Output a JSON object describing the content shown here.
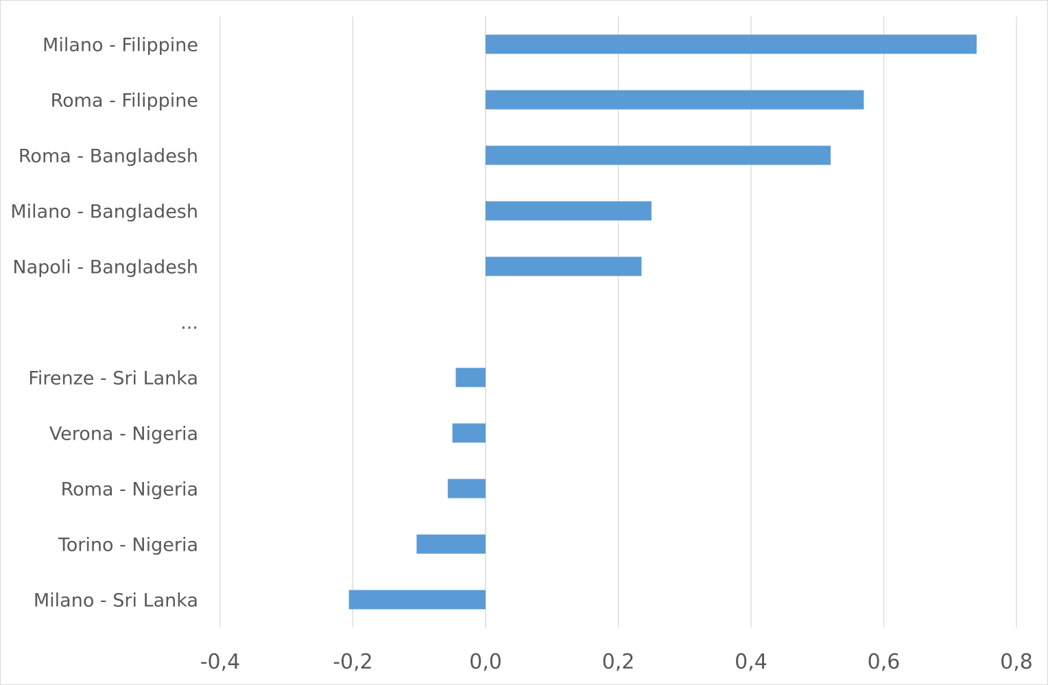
{
  "chart_data": {
    "type": "bar",
    "orientation": "horizontal",
    "categories": [
      "Milano - Filippine",
      "Roma - Filippine",
      "Roma - Bangladesh",
      "Milano - Bangladesh",
      "Napoli - Bangladesh",
      "...",
      "Firenze - Sri Lanka",
      "Verona - Nigeria",
      "Roma - Nigeria",
      "Torino - Nigeria",
      "Milano - Sri Lanka"
    ],
    "values": [
      0.74,
      0.57,
      0.52,
      0.25,
      0.235,
      null,
      -0.045,
      -0.05,
      -0.057,
      -0.104,
      -0.206
    ],
    "xlim": [
      -0.4,
      0.8
    ],
    "xticks": [
      -0.4,
      -0.2,
      0.0,
      0.2,
      0.4,
      0.6,
      0.8
    ],
    "xtick_labels": [
      "-0,4",
      "-0,2",
      "0,0",
      "0,2",
      "0,4",
      "0,6",
      "0,8"
    ],
    "title": "",
    "xlabel": "",
    "ylabel": "",
    "grid": "vertical",
    "legend": "none",
    "bar_color": "#5b9bd5",
    "grid_color": "#d9d9d9",
    "text_color": "#595959"
  }
}
